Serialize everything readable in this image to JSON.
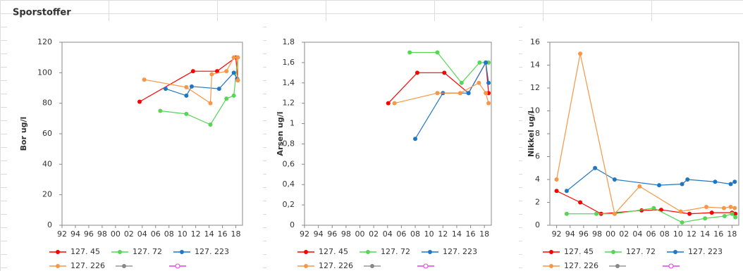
{
  "title": "Sporstoffer",
  "chart_data": [
    {
      "type": "line",
      "y_label": "Bor ug/l",
      "xlim": [
        1992,
        2019
      ],
      "ylim": [
        0,
        120
      ],
      "yticks": [
        0,
        20,
        40,
        60,
        80,
        100,
        120
      ],
      "xticks": [
        {
          "value": 1992,
          "label": "92"
        },
        {
          "value": 1994,
          "label": "94"
        },
        {
          "value": 1996,
          "label": "96"
        },
        {
          "value": 1998,
          "label": "98"
        },
        {
          "value": 2000,
          "label": "00"
        },
        {
          "value": 2002,
          "label": "02"
        },
        {
          "value": 2004,
          "label": "04"
        },
        {
          "value": 2006,
          "label": "06"
        },
        {
          "value": 2008,
          "label": "08"
        },
        {
          "value": 2010,
          "label": "10"
        },
        {
          "value": 2012,
          "label": "12"
        },
        {
          "value": 2014,
          "label": "14"
        },
        {
          "value": 2016,
          "label": "16"
        },
        {
          "value": 2018,
          "label": "18"
        }
      ],
      "series": [
        {
          "name": "127.  45",
          "color": "#ff0000",
          "x": [
            2003.6,
            2011.6,
            2015.2,
            2018.0,
            2018.3
          ],
          "values": [
            81,
            101,
            101,
            110,
            95
          ]
        },
        {
          "name": "127.  72",
          "color": "#55d655",
          "x": [
            2006.7,
            2010.6,
            2014.2,
            2016.6,
            2017.7,
            2018.3
          ],
          "values": [
            75,
            73,
            66,
            83,
            85,
            110
          ]
        },
        {
          "name": "127.  223",
          "color": "#1f77c4",
          "x": [
            2007.5,
            2010.6,
            2011.4,
            2015.5,
            2017.7,
            2018.2
          ],
          "values": [
            89.5,
            85,
            91,
            89.5,
            100,
            96
          ]
        },
        {
          "name": "127.  226",
          "color": "#f79646",
          "x": [
            2004.3,
            2010.6,
            2014.2,
            2014.4,
            2016.6,
            2017.7,
            2018.3,
            2018.3
          ],
          "values": [
            95.5,
            90.5,
            80,
            99,
            101,
            110,
            110,
            95
          ]
        }
      ]
    },
    {
      "type": "line",
      "y_label": "Arsen ug/l",
      "xlim": [
        1992,
        2019
      ],
      "ylim": [
        0,
        1.8
      ],
      "yticks": [
        0,
        {
          "value": 0.2,
          "label": "0,2"
        },
        {
          "value": 0.4,
          "label": "0,4"
        },
        {
          "value": 0.6,
          "label": "0,6"
        },
        {
          "value": 0.8,
          "label": "0,8"
        },
        1,
        {
          "value": 1.2,
          "label": "1,2"
        },
        {
          "value": 1.4,
          "label": "1,4"
        },
        {
          "value": 1.6,
          "label": "1,6"
        },
        {
          "value": 1.8,
          "label": "1,8"
        }
      ],
      "xticks": [
        {
          "value": 1992,
          "label": "92"
        },
        {
          "value": 1994,
          "label": "94"
        },
        {
          "value": 1996,
          "label": "96"
        },
        {
          "value": 1998,
          "label": "98"
        },
        {
          "value": 2000,
          "label": "00"
        },
        {
          "value": 2002,
          "label": "02"
        },
        {
          "value": 2004,
          "label": "04"
        },
        {
          "value": 2006,
          "label": "06"
        },
        {
          "value": 2008,
          "label": "08"
        },
        {
          "value": 2010,
          "label": "10"
        },
        {
          "value": 2012,
          "label": "12"
        },
        {
          "value": 2014,
          "label": "14"
        },
        {
          "value": 2016,
          "label": "16"
        },
        {
          "value": 2018,
          "label": "18"
        }
      ],
      "series": [
        {
          "name": "127.  45",
          "color": "#ff0000",
          "x": [
            2004.1,
            2008.3,
            2012.2,
            2015.7,
            2018.2,
            2018.6
          ],
          "values": [
            1.2,
            1.5,
            1.5,
            1.3,
            1.6,
            1.3
          ]
        },
        {
          "name": "127.  72",
          "color": "#55d655",
          "x": [
            2007.2,
            2011.2,
            2014.7,
            2017.3,
            2018.6
          ],
          "values": [
            1.7,
            1.7,
            1.4,
            1.6,
            1.6
          ]
        },
        {
          "name": "127.  223",
          "color": "#1f77c4",
          "x": [
            2008.0,
            2012.0,
            2015.7,
            2018.2,
            2018.6
          ],
          "values": [
            0.85,
            1.3,
            1.3,
            1.6,
            1.4
          ]
        },
        {
          "name": "127.  226",
          "color": "#f79646",
          "x": [
            2005.0,
            2011.2,
            2014.5,
            2017.2,
            2018.2,
            2018.6
          ],
          "values": [
            1.2,
            1.3,
            1.3,
            1.4,
            1.3,
            1.2
          ]
        }
      ]
    },
    {
      "type": "line",
      "y_label": "Nikkel ug/l",
      "xlim": [
        1991,
        2019
      ],
      "ylim": [
        0,
        16
      ],
      "yticks": [
        0,
        2,
        4,
        6,
        8,
        10,
        12,
        14,
        16
      ],
      "xticks": [
        {
          "value": 1992,
          "label": "92"
        },
        {
          "value": 1994,
          "label": "94"
        },
        {
          "value": 1996,
          "label": "96"
        },
        {
          "value": 1998,
          "label": "98"
        },
        {
          "value": 2000,
          "label": "00"
        },
        {
          "value": 2002,
          "label": "02"
        },
        {
          "value": 2004,
          "label": "04"
        },
        {
          "value": 2006,
          "label": "06"
        },
        {
          "value": 2008,
          "label": "08"
        },
        {
          "value": 2010,
          "label": "10"
        },
        {
          "value": 2012,
          "label": "12"
        },
        {
          "value": 2014,
          "label": "14"
        },
        {
          "value": 2016,
          "label": "16"
        },
        {
          "value": 2018,
          "label": "18"
        }
      ],
      "series": [
        {
          "name": "127.  45",
          "color": "#ff0000",
          "x": [
            1992,
            1995.5,
            1998.6,
            2004.6,
            2007.5,
            2011.7,
            2015,
            2018,
            2018.5
          ],
          "values": [
            3,
            2,
            1,
            1.3,
            1.35,
            1,
            1.1,
            1.1,
            1
          ]
        },
        {
          "name": "127.  72",
          "color": "#55d655",
          "x": [
            1993.5,
            1997.9,
            2000.6,
            2006.4,
            2010.6,
            2014,
            2016.9,
            2018,
            2018.5
          ],
          "values": [
            1,
            1,
            1,
            1.5,
            0.25,
            0.6,
            0.8,
            1,
            0.7
          ]
        },
        {
          "name": "127.  223",
          "color": "#1f77c4",
          "x": [
            1993.5,
            1997.7,
            2000.6,
            2007.2,
            2010.6,
            2011.4,
            2015.5,
            2017.8,
            2018.4
          ],
          "values": [
            3,
            5,
            4,
            3.5,
            3.6,
            4,
            3.8,
            3.6,
            3.8
          ]
        },
        {
          "name": "127.  226",
          "color": "#f79646",
          "x": [
            1992,
            1995.5,
            2000.6,
            2004.3,
            2010.4,
            2014.2,
            2016.8,
            2017.8,
            2018.4
          ],
          "values": [
            4,
            15,
            1,
            3.4,
            1.2,
            1.6,
            1.5,
            1.6,
            1.5
          ]
        }
      ]
    }
  ]
}
